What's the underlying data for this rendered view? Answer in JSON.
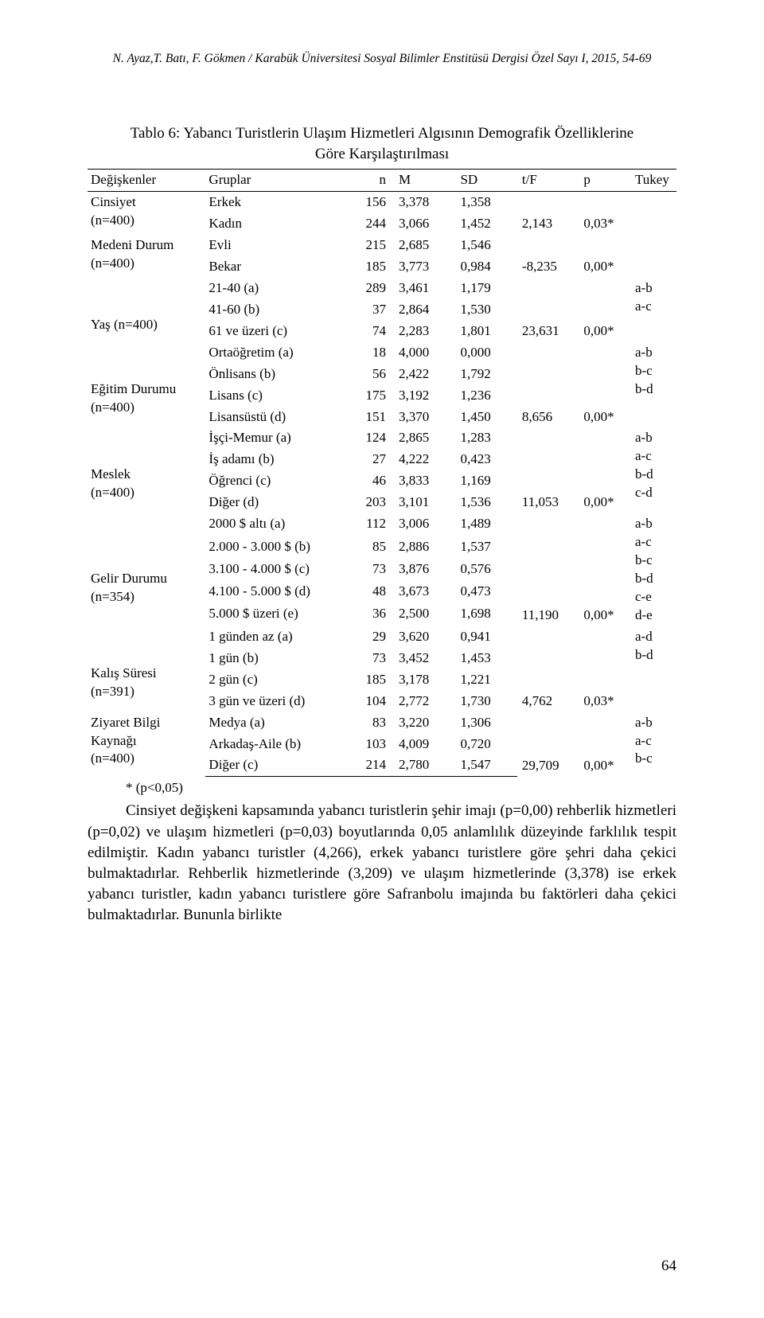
{
  "colors": {
    "text": "#000000",
    "background": "#ffffff",
    "rule": "#000000"
  },
  "fonts": {
    "body_family": "Book Antiqua / Palatino",
    "running_head_pt": 11,
    "table_title_pt": 14,
    "table_body_pt": 12.5,
    "body_para_pt": 14
  },
  "running_head": "N. Ayaz,T. Batı, F. Gökmen / Karabük Üniversitesi Sosyal Bilimler Enstitüsü Dergisi Özel Sayı I, 2015, 54-69",
  "table_title_lines": [
    "Tablo 6: Yabancı Turistlerin Ulaşım Hizmetleri Algısının Demografik Özelliklerine",
    "Göre Karşılaştırılması"
  ],
  "columns": [
    "Değişkenler",
    "Gruplar",
    "n",
    "M",
    "SD",
    "t/F",
    "p",
    "Tukey"
  ],
  "groups": [
    {
      "var_lines": [
        "Cinsiyet",
        "(n=400)"
      ],
      "rows": [
        {
          "g": "Erkek",
          "n": "156",
          "m": "3,378",
          "sd": "1,358"
        },
        {
          "g": "Kadın",
          "n": "244",
          "m": "3,066",
          "sd": "1,452"
        }
      ],
      "tf": "2,143",
      "p": "0,03*",
      "tukey_lines": []
    },
    {
      "var_lines": [
        "Medeni Durum",
        "(n=400)"
      ],
      "rows": [
        {
          "g": "Evli",
          "n": "215",
          "m": "2,685",
          "sd": "1,546"
        },
        {
          "g": "Bekar",
          "n": "185",
          "m": "3,773",
          "sd": "0,984"
        }
      ],
      "tf": "-8,235",
      "p": "0,00*",
      "tukey_lines": []
    },
    {
      "var_lines": [
        "",
        "",
        "Yaş (n=400)"
      ],
      "rows": [
        {
          "g": "21-40 (a)",
          "n": "289",
          "m": "3,461",
          "sd": "1,179"
        },
        {
          "g": "41-60 (b)",
          "n": "37",
          "m": "2,864",
          "sd": "1,530"
        },
        {
          "g": "61 ve üzeri (c)",
          "n": "74",
          "m": "2,283",
          "sd": "1,801"
        }
      ],
      "tf": "23,631",
      "p": "0,00*",
      "tukey_lines": [
        "a-b",
        "a-c"
      ]
    },
    {
      "var_lines": [
        "",
        "",
        "Eğitim Durumu",
        "(n=400)"
      ],
      "rows": [
        {
          "g": "Ortaöğretim (a)",
          "n": "18",
          "m": "4,000",
          "sd": "0,000"
        },
        {
          "g": "Önlisans (b)",
          "n": "56",
          "m": "2,422",
          "sd": "1,792"
        },
        {
          "g": "Lisans (c)",
          "n": "175",
          "m": "3,192",
          "sd": "1,236"
        },
        {
          "g": "Lisansüstü (d)",
          "n": "151",
          "m": "3,370",
          "sd": "1,450"
        }
      ],
      "tf": "8,656",
      "p": "0,00*",
      "tukey_lines": [
        "a-b",
        "b-c",
        "b-d"
      ]
    },
    {
      "var_lines": [
        "",
        "",
        "Meslek",
        "(n=400)"
      ],
      "rows": [
        {
          "g": "İşçi-Memur (a)",
          "n": "124",
          "m": "2,865",
          "sd": "1,283"
        },
        {
          "g": "İş adamı (b)",
          "n": "27",
          "m": "4,222",
          "sd": "0,423"
        },
        {
          "g": "Öğrenci (c)",
          "n": "46",
          "m": "3,833",
          "sd": "1,169"
        },
        {
          "g": "Diğer (d)",
          "n": "203",
          "m": "3,101",
          "sd": "1,536"
        }
      ],
      "tf": "11,053",
      "p": "0,00*",
      "tukey_lines": [
        "a-b",
        "a-c",
        "b-d",
        "c-d"
      ]
    },
    {
      "var_lines": [
        "",
        "",
        "",
        "Gelir Durumu",
        "(n=354)"
      ],
      "rows": [
        {
          "g": "2000 $ altı (a)",
          "n": "112",
          "m": "3,006",
          "sd": "1,489"
        },
        {
          "g": "2.000 - 3.000 $ (b)",
          "n": "85",
          "m": "2,886",
          "sd": "1,537"
        },
        {
          "g": "3.100 - 4.000 $ (c)",
          "n": "73",
          "m": "3,876",
          "sd": "0,576"
        },
        {
          "g": "4.100 - 5.000 $ (d)",
          "n": "48",
          "m": "3,673",
          "sd": "0,473"
        },
        {
          "g": "5.000 $ üzeri (e)",
          "n": "36",
          "m": "2,500",
          "sd": "1,698"
        }
      ],
      "tf": "11,190",
      "p": "0,00*",
      "tukey_lines": [
        "a-b",
        "a-c",
        "b-c",
        "b-d",
        "c-e",
        "d-e"
      ]
    },
    {
      "var_lines": [
        "",
        "",
        "Kalış Süresi",
        "(n=391)"
      ],
      "rows": [
        {
          "g": "1 günden az (a)",
          "n": "29",
          "m": "3,620",
          "sd": "0,941"
        },
        {
          "g": "1 gün (b)",
          "n": "73",
          "m": "3,452",
          "sd": "1,453"
        },
        {
          "g": "2 gün (c)",
          "n": "185",
          "m": "3,178",
          "sd": "1,221"
        },
        {
          "g": "3 gün ve üzeri (d)",
          "n": "104",
          "m": "2,772",
          "sd": "1,730"
        }
      ],
      "tf": "4,762",
      "p": "0,03*",
      "tukey_lines": [
        "a-d",
        "b-d"
      ]
    },
    {
      "var_lines": [
        "Ziyaret Bilgi",
        "Kaynağı",
        "(n=400)"
      ],
      "rows": [
        {
          "g": "Medya (a)",
          "n": "83",
          "m": "3,220",
          "sd": "1,306"
        },
        {
          "g": "Arkadaş-Aile (b)",
          "n": "103",
          "m": "4,009",
          "sd": "0,720"
        },
        {
          "g": "Diğer (c)",
          "n": "214",
          "m": "2,780",
          "sd": "1,547"
        }
      ],
      "tf": "29,709",
      "p": "0,00*",
      "tukey_lines": [
        "a-b",
        "a-c",
        "b-c"
      ]
    }
  ],
  "footnote": "* (p<0,05)",
  "paragraph": "Cinsiyet değişkeni kapsamında yabancı turistlerin şehir imajı (p=0,00) rehberlik hizmetleri (p=0,02) ve ulaşım hizmetleri (p=0,03) boyutlarında 0,05 anlamlılık düzeyinde farklılık tespit edilmiştir. Kadın yabancı turistler (4,266), erkek yabancı turistlere göre şehri daha çekici bulmaktadırlar. Rehberlik hizmetlerinde (3,209) ve ulaşım hizmetlerinde (3,378) ise erkek yabancı turistler, kadın yabancı turistlere göre Safranbolu imajında bu faktörleri daha çekici bulmaktadırlar. Bununla birlikte",
  "page_number": "64"
}
